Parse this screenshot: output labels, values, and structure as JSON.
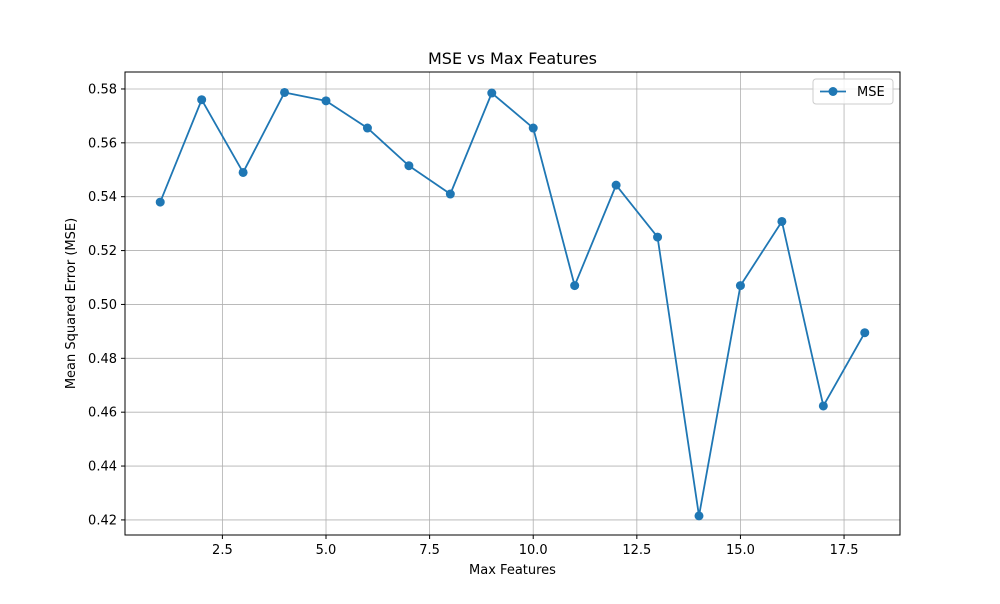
{
  "chart_data": {
    "type": "line",
    "title": "MSE vs Max Features",
    "xlabel": "Max Features",
    "ylabel": "Mean Squared Error (MSE)",
    "xlim": [
      0.15,
      18.85
    ],
    "ylim": [
      0.4144,
      0.5863
    ],
    "x_ticks": [
      2.5,
      5.0,
      7.5,
      10.0,
      12.5,
      15.0,
      17.5
    ],
    "x_tick_labels": [
      "2.5",
      "5.0",
      "7.5",
      "10.0",
      "12.5",
      "15.0",
      "17.5"
    ],
    "y_ticks": [
      0.42,
      0.44,
      0.46,
      0.48,
      0.5,
      0.52,
      0.54,
      0.56,
      0.58
    ],
    "y_tick_labels": [
      "0.42",
      "0.44",
      "0.46",
      "0.48",
      "0.50",
      "0.52",
      "0.54",
      "0.56",
      "0.58"
    ],
    "grid": true,
    "legend_position": "top-right",
    "series": [
      {
        "name": "MSE",
        "color": "#1f77b4",
        "marker": "circle",
        "x": [
          1,
          2,
          3,
          4,
          5,
          6,
          7,
          8,
          9,
          10,
          11,
          12,
          13,
          14,
          15,
          16,
          17,
          18
        ],
        "y": [
          0.538,
          0.576,
          0.549,
          0.5787,
          0.5756,
          0.5655,
          0.5515,
          0.541,
          0.5785,
          0.5655,
          0.507,
          0.5443,
          0.525,
          0.4215,
          0.507,
          0.5308,
          0.4623,
          0.4895
        ]
      }
    ]
  }
}
